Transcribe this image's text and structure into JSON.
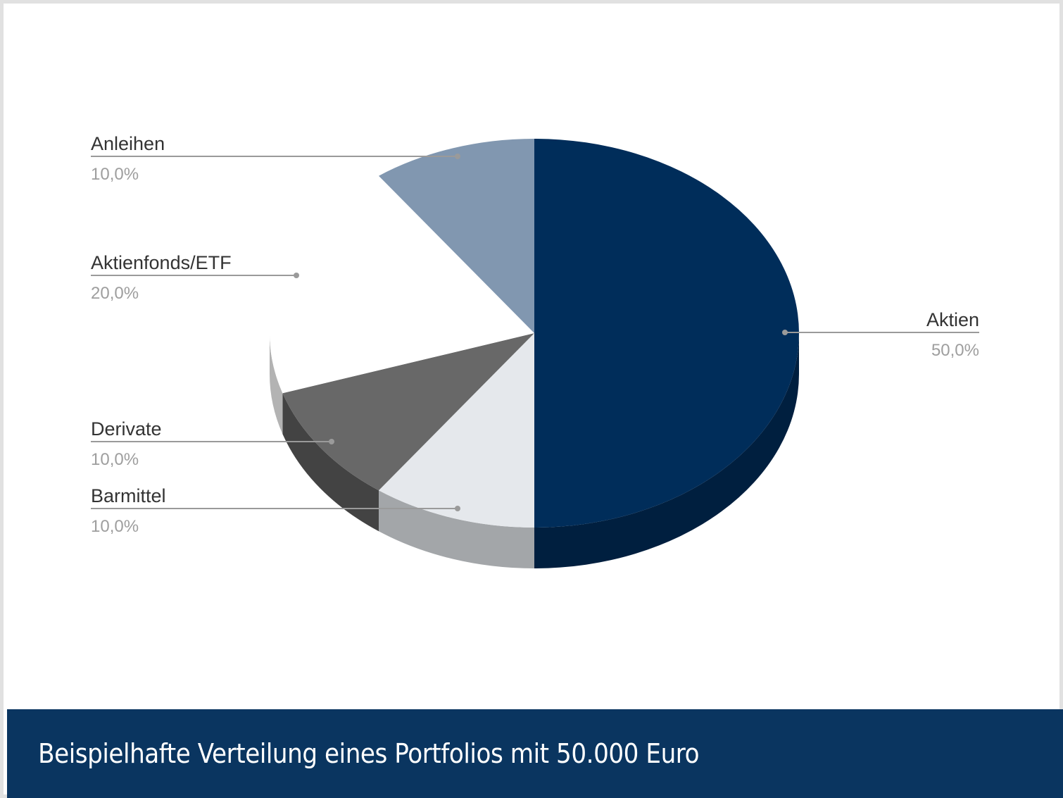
{
  "chart_data": {
    "type": "pie",
    "style": "3d",
    "slices": [
      {
        "label": "Aktien",
        "value": 50.0,
        "value_label": "50,0%",
        "color": "#002d5a",
        "side_color": "#001f3f"
      },
      {
        "label": "Barmittel",
        "value": 10.0,
        "value_label": "10,0%",
        "color": "#e5e8ec",
        "side_color": "#a3a6a9"
      },
      {
        "label": "Derivate",
        "value": 10.0,
        "value_label": "10,0%",
        "color": "#686868",
        "side_color": "#434343"
      },
      {
        "label": "Aktienfonds/ETF",
        "value": 20.0,
        "value_label": "20,0%",
        "color": "#ffffff",
        "side_color": "#b3b3b3"
      },
      {
        "label": "Anleihen",
        "value": 10.0,
        "value_label": "10,0%",
        "color": "#8197b0",
        "side_color": "#5e6f82"
      }
    ],
    "legend": "leader-line labels"
  },
  "caption": "Beispielhafte Verteilung eines Portfolios mit 50.000 Euro",
  "colors": {
    "caption_bar": "#0a3560",
    "leader_line": "#9a9a9a",
    "frame_border": "#e1e1e1"
  }
}
